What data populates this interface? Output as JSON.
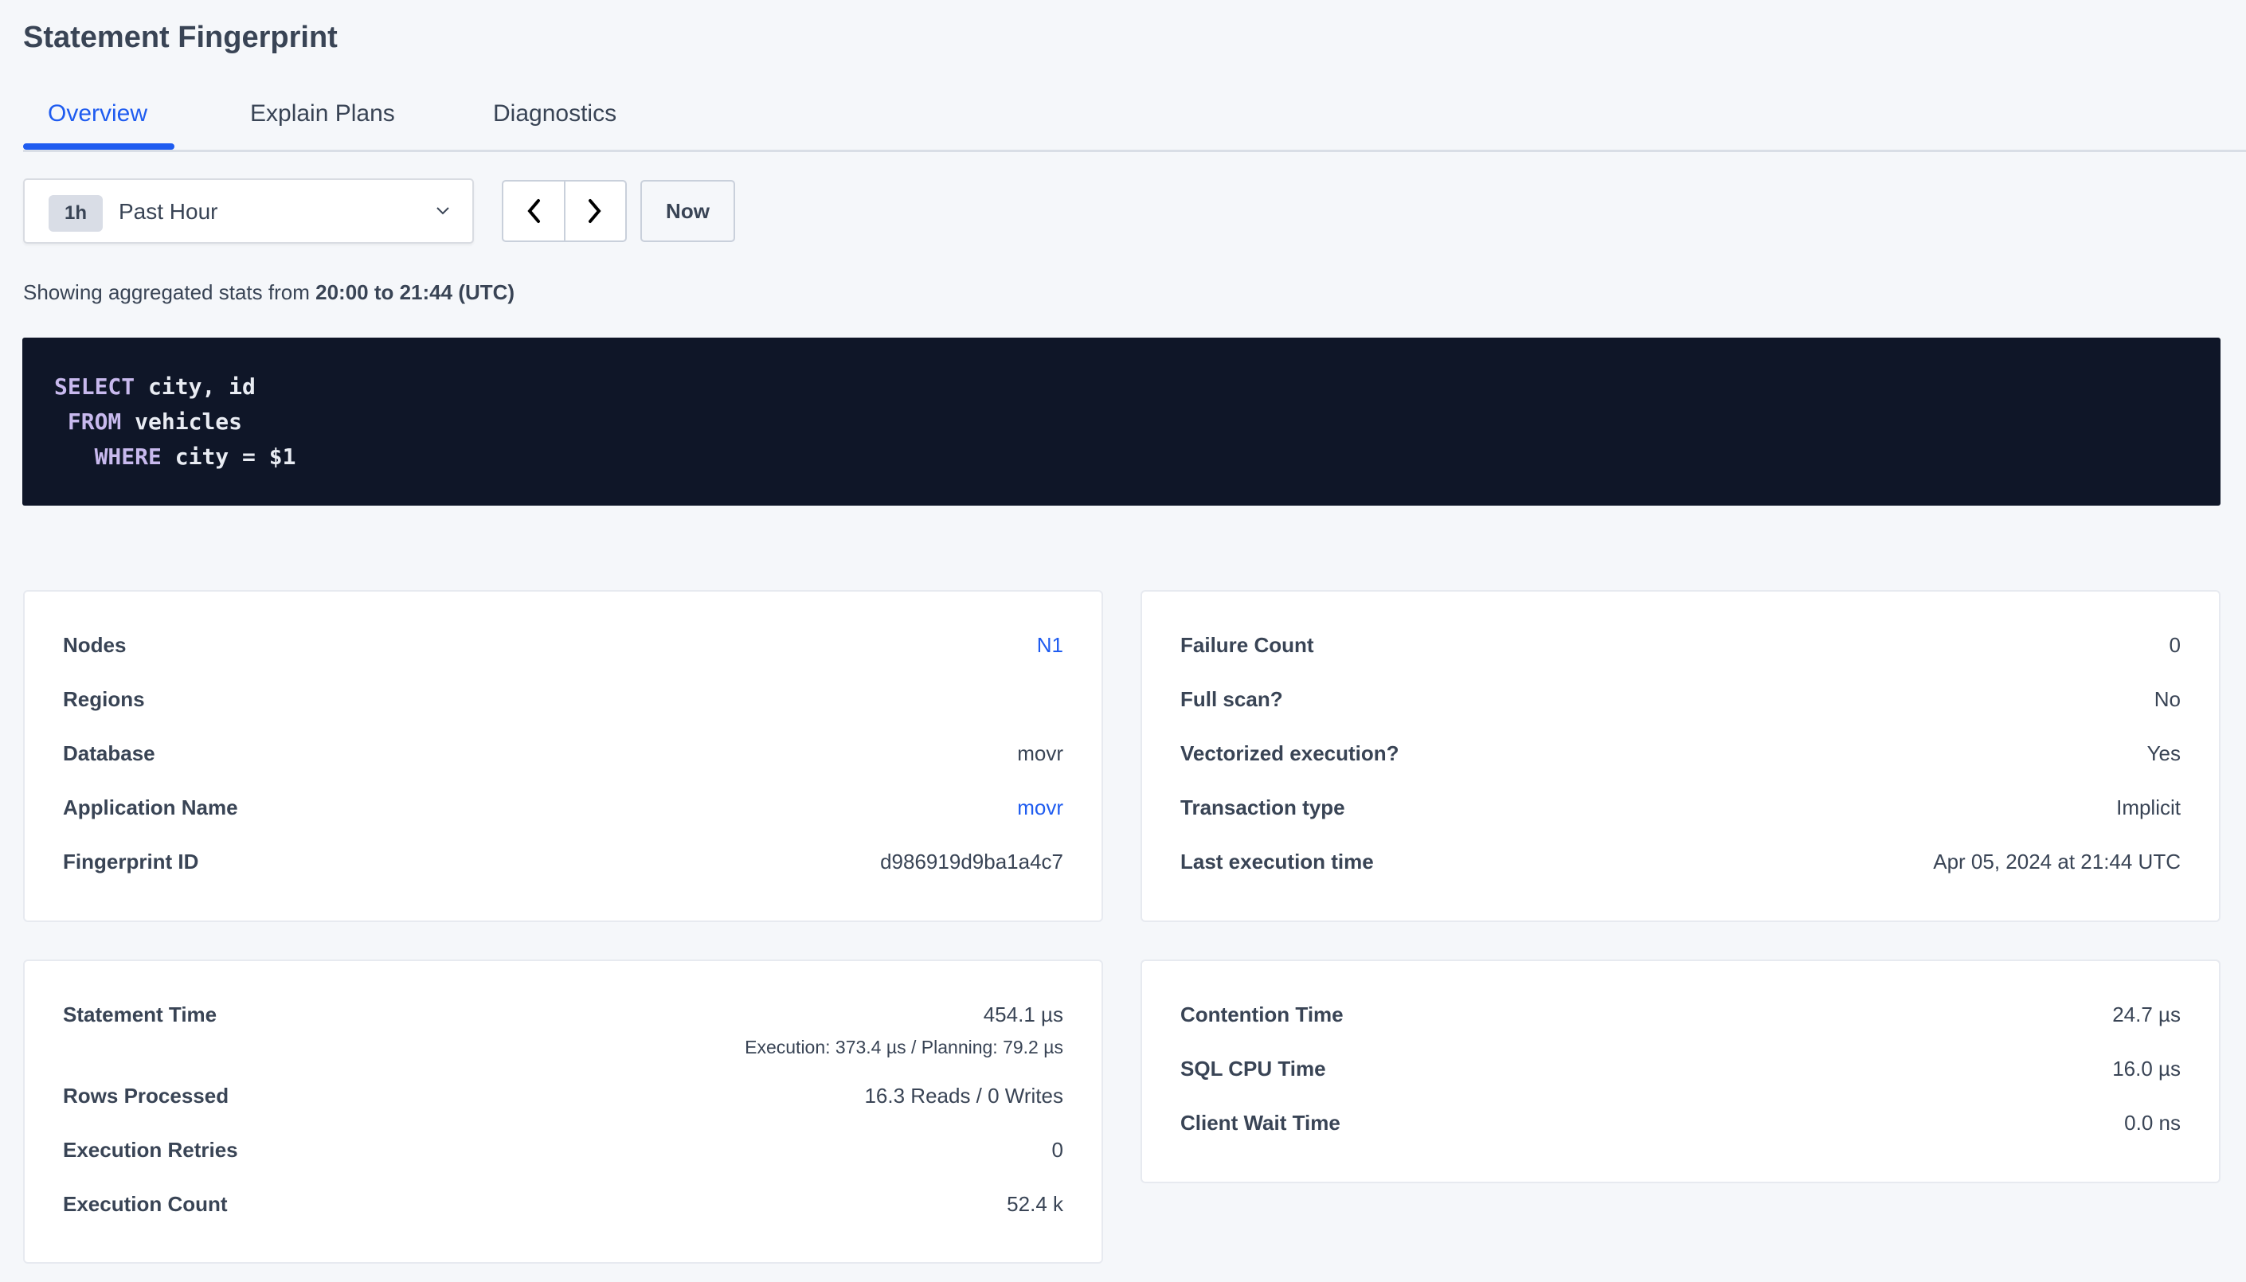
{
  "page": {
    "title": "Statement Fingerprint"
  },
  "tabs": [
    {
      "label": "Overview",
      "active": true
    },
    {
      "label": "Explain Plans",
      "active": false
    },
    {
      "label": "Diagnostics",
      "active": false
    }
  ],
  "time_picker": {
    "badge": "1h",
    "selected": "Past Hour",
    "icon": "chevron-down-icon",
    "prev_icon": "chevron-left-icon",
    "next_icon": "chevron-right-icon",
    "now_label": "Now"
  },
  "stats_line": {
    "prefix": "Showing aggregated stats from ",
    "range": "20:00 to 21:44 (UTC)"
  },
  "sql": {
    "lines": [
      {
        "indent": "",
        "keyword": "SELECT",
        "rest": " city, id"
      },
      {
        "indent": " ",
        "keyword": "FROM",
        "rest": " vehicles"
      },
      {
        "indent": "   ",
        "keyword": "WHERE",
        "rest": " city = $1"
      }
    ]
  },
  "cards": {
    "details_left": [
      {
        "label": "Nodes",
        "value": "N1",
        "link": true
      },
      {
        "label": "Regions",
        "value": ""
      },
      {
        "label": "Database",
        "value": "movr"
      },
      {
        "label": "Application Name",
        "value": "movr",
        "link": true
      },
      {
        "label": "Fingerprint ID",
        "value": "d986919d9ba1a4c7"
      }
    ],
    "details_right": [
      {
        "label": "Failure Count",
        "value": "0"
      },
      {
        "label": "Full scan?",
        "value": "No"
      },
      {
        "label": "Vectorized execution?",
        "value": "Yes"
      },
      {
        "label": "Transaction type",
        "value": "Implicit"
      },
      {
        "label": "Last execution time",
        "value": "Apr 05, 2024 at 21:44 UTC"
      }
    ],
    "metrics_left": [
      {
        "label": "Statement Time",
        "value": "454.1 µs",
        "sub": "Execution: 373.4 µs / Planning: 79.2 µs"
      },
      {
        "label": "Rows Processed",
        "value": "16.3 Reads / 0 Writes"
      },
      {
        "label": "Execution Retries",
        "value": "0"
      },
      {
        "label": "Execution Count",
        "value": "52.4 k"
      }
    ],
    "metrics_right": [
      {
        "label": "Contention Time",
        "value": "24.7 µs"
      },
      {
        "label": "SQL CPU Time",
        "value": "16.0 µs"
      },
      {
        "label": "Client Wait Time",
        "value": "0.0 ns"
      }
    ]
  },
  "colors": {
    "accent": "#1f5cf0",
    "code_bg": "#0f1628",
    "keyword": "#c8b9ee",
    "background": "#f5f7fa"
  }
}
